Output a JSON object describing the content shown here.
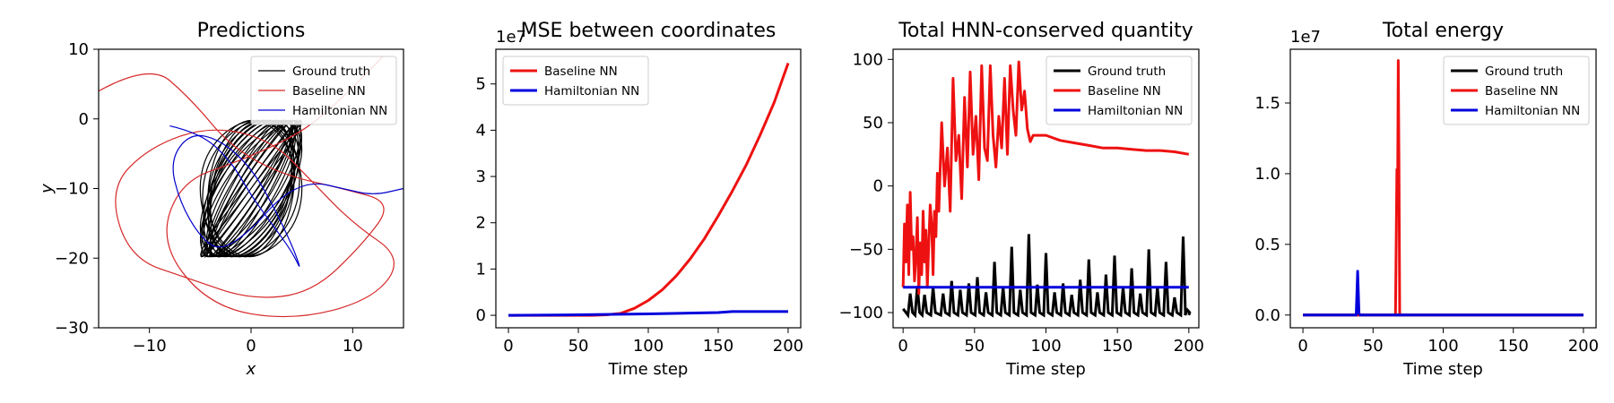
{
  "chart_data": [
    {
      "type": "line",
      "title": "Predictions",
      "xlabel": "x",
      "ylabel": "y",
      "xlim": [
        -15,
        15
      ],
      "ylim": [
        -30,
        10
      ],
      "xticks": [
        -10,
        0,
        10
      ],
      "yticks": [
        10,
        0,
        -10,
        -20,
        -30
      ],
      "legend_placement": "top-right",
      "series": [
        {
          "name": "Ground truth",
          "color": "#000000",
          "kind": "ellipse-bundle",
          "center": [
            0,
            -10
          ],
          "x_extent": [
            -5,
            5
          ],
          "y_extent": [
            -21,
            -0.5
          ],
          "loops": 24
        },
        {
          "name": "Baseline NN",
          "color": "#d62728",
          "kind": "trajectory",
          "points": [
            [
              -15,
              4
            ],
            [
              -10,
              8
            ],
            [
              -6,
              3
            ],
            [
              -2,
              -4
            ],
            [
              3,
              -8
            ],
            [
              9,
              -10
            ],
            [
              14,
              -12
            ],
            [
              11,
              -18
            ],
            [
              6,
              -25
            ],
            [
              0,
              -26
            ],
            [
              -6,
              -23
            ],
            [
              -12,
              -20
            ],
            [
              -14,
              -10
            ],
            [
              -10,
              -4
            ],
            [
              -4,
              -1
            ],
            [
              2,
              -3
            ],
            [
              6,
              -9
            ],
            [
              10,
              -15
            ],
            [
              15,
              -20
            ],
            [
              12,
              -26
            ],
            [
              4,
              -29
            ],
            [
              -4,
              -27
            ],
            [
              -9,
              -18
            ],
            [
              -7,
              -9
            ],
            [
              -1,
              -6
            ],
            [
              5,
              -2
            ],
            [
              9,
              3
            ],
            [
              13,
              9
            ]
          ]
        },
        {
          "name": "Hamiltonian NN",
          "color": "#0000cc",
          "kind": "trajectory",
          "points": [
            [
              -8,
              -1
            ],
            [
              -5,
              -2
            ],
            [
              -2,
              -6
            ],
            [
              0,
              -11
            ],
            [
              2,
              -15
            ],
            [
              4,
              -19
            ],
            [
              5,
              -22
            ],
            [
              4,
              -18
            ],
            [
              2,
              -12
            ],
            [
              0,
              -7
            ],
            [
              -3,
              -3
            ],
            [
              -6,
              -2
            ],
            [
              -8,
              -6
            ],
            [
              -7,
              -12
            ],
            [
              -5,
              -17
            ],
            [
              -3,
              -19
            ],
            [
              0,
              -16
            ],
            [
              3,
              -11
            ],
            [
              6,
              -9
            ],
            [
              9,
              -10
            ],
            [
              12,
              -11
            ],
            [
              15,
              -10
            ]
          ]
        }
      ]
    },
    {
      "type": "line",
      "title": "MSE between coordinates",
      "xlabel": "Time step",
      "ylabel": "",
      "multiplier": "1e7",
      "xlim": [
        -9,
        209
      ],
      "ylim": [
        -0.27,
        5.75
      ],
      "xticks": [
        0,
        50,
        100,
        150,
        200
      ],
      "yticks": [
        0,
        1,
        2,
        3,
        4,
        5
      ],
      "legend_placement": "top-left",
      "series": [
        {
          "name": "Baseline NN",
          "color": "#ee1111",
          "x": [
            0,
            60,
            70,
            80,
            90,
            100,
            110,
            120,
            130,
            140,
            150,
            160,
            170,
            180,
            190,
            200
          ],
          "y": [
            0,
            0,
            0.01,
            0.04,
            0.15,
            0.32,
            0.55,
            0.85,
            1.22,
            1.65,
            2.15,
            2.68,
            3.25,
            3.9,
            4.6,
            5.45
          ]
        },
        {
          "name": "Hamiltonian NN",
          "color": "#0000dd",
          "x": [
            0,
            50,
            100,
            150,
            160,
            200
          ],
          "y": [
            0,
            0.01,
            0.03,
            0.06,
            0.08,
            0.08
          ]
        }
      ]
    },
    {
      "type": "line",
      "title": "Total HNN-conserved quantity",
      "xlabel": "Time step",
      "ylabel": "",
      "xlim": [
        -7,
        207
      ],
      "ylim": [
        -112,
        108
      ],
      "xticks": [
        0,
        50,
        100,
        150,
        200
      ],
      "yticks": [
        100,
        50,
        0,
        -50,
        -100
      ],
      "legend_placement": "top-right",
      "series": [
        {
          "name": "Ground truth",
          "color": "#000000",
          "kind": "oscillating",
          "base": -97,
          "low": -102,
          "peak_x": [
            5,
            10,
            15,
            21,
            28,
            34,
            40,
            46,
            52,
            58,
            64,
            70,
            76,
            82,
            88,
            94,
            100,
            106,
            112,
            118,
            124,
            130,
            136,
            142,
            148,
            154,
            160,
            166,
            172,
            178,
            184,
            190,
            196,
            199
          ],
          "peak_y": [
            -85,
            -79,
            -86,
            -80,
            -85,
            -75,
            -82,
            -77,
            -72,
            -84,
            -60,
            -80,
            -48,
            -82,
            -38,
            -78,
            -53,
            -84,
            -77,
            -86,
            -74,
            -58,
            -84,
            -70,
            -55,
            -80,
            -65,
            -85,
            -50,
            -80,
            -60,
            -88,
            -40,
            -98
          ]
        },
        {
          "name": "Baseline NN",
          "color": "#ee1111",
          "x": [
            0,
            1,
            2,
            3,
            4,
            5,
            6,
            7,
            8,
            9,
            10,
            11,
            12,
            13,
            14,
            15,
            16,
            17,
            18,
            19,
            20,
            21,
            22,
            23,
            24,
            25,
            27,
            29,
            31,
            33,
            35,
            37,
            39,
            41,
            43,
            45,
            47,
            49,
            51,
            53,
            55,
            57,
            59,
            61,
            63,
            65,
            67,
            69,
            71,
            73,
            75,
            77,
            79,
            81,
            83,
            85,
            87,
            89,
            91,
            95,
            100,
            105,
            110,
            120,
            130,
            140,
            150,
            160,
            170,
            180,
            190,
            200
          ],
          "y": [
            -80,
            -30,
            -60,
            -15,
            -70,
            -5,
            -50,
            -40,
            -75,
            -55,
            -25,
            -85,
            -45,
            -70,
            -20,
            -60,
            -35,
            -80,
            -45,
            -15,
            -30,
            -70,
            -20,
            -40,
            10,
            -20,
            50,
            0,
            30,
            -20,
            85,
            20,
            40,
            -10,
            70,
            15,
            90,
            25,
            55,
            5,
            95,
            30,
            20,
            95,
            40,
            15,
            55,
            30,
            85,
            25,
            95,
            60,
            40,
            98,
            60,
            75,
            45,
            35,
            40,
            40,
            40,
            38,
            36,
            34,
            32,
            30,
            30,
            29,
            28,
            28,
            27,
            25
          ]
        },
        {
          "name": "Hamiltonian NN",
          "color": "#0000dd",
          "x": [
            0,
            200
          ],
          "y": [
            -80,
            -80
          ]
        }
      ]
    },
    {
      "type": "line",
      "title": "Total energy",
      "xlabel": "Time step",
      "ylabel": "",
      "multiplier": "1e7",
      "xlim": [
        -9,
        209
      ],
      "ylim": [
        -0.09,
        1.88
      ],
      "xticks": [
        0,
        50,
        100,
        150,
        200
      ],
      "yticks": [
        0.0,
        0.5,
        1.0,
        1.5
      ],
      "legend_placement": "top-right",
      "series": [
        {
          "name": "Ground truth",
          "color": "#000000",
          "x": [
            0,
            200
          ],
          "y": [
            0,
            0
          ]
        },
        {
          "name": "Baseline NN",
          "color": "#ee1111",
          "x": [
            0,
            66,
            67,
            67.5,
            68,
            68.5,
            69,
            70,
            200
          ],
          "y": [
            0,
            0,
            1.03,
            0.9,
            1.8,
            1.05,
            0,
            0,
            0
          ]
        },
        {
          "name": "Hamiltonian NN",
          "color": "#0000dd",
          "x": [
            0,
            38,
            39,
            40,
            41,
            200
          ],
          "y": [
            0,
            0,
            0.31,
            0.01,
            0,
            0
          ]
        }
      ]
    }
  ]
}
